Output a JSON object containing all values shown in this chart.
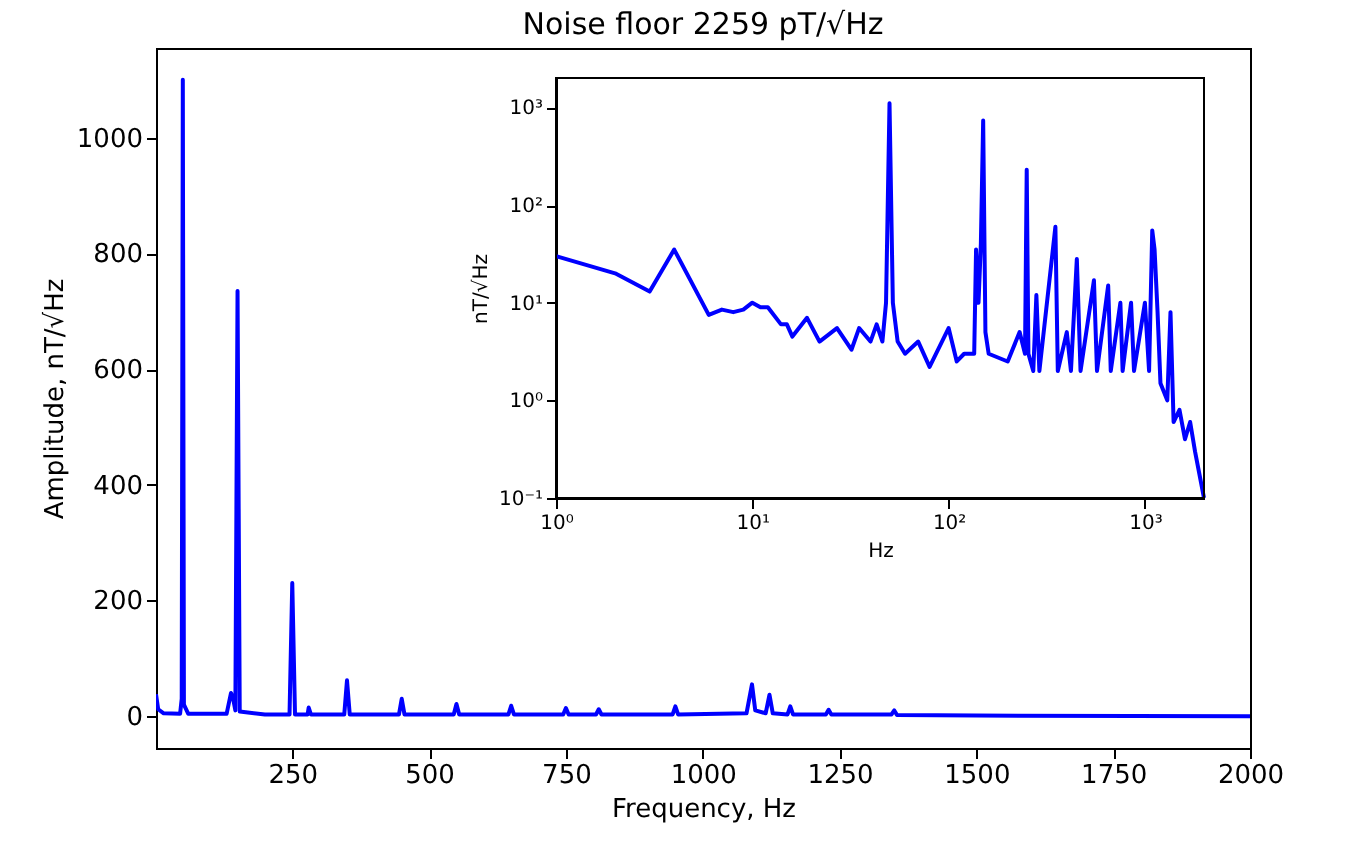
{
  "chart_data": [
    {
      "type": "line",
      "title": "Noise floor 2259 pT/√Hz",
      "xlabel": "Frequency, Hz",
      "ylabel": "Amplitude, nT/√Hz",
      "xlim": [
        1,
        2000
      ],
      "xticks": [
        250,
        500,
        750,
        1000,
        1250,
        1500,
        1750,
        2000
      ],
      "ylim": [
        -55,
        1155
      ],
      "yticks": [
        0,
        200,
        400,
        600,
        800,
        1000
      ],
      "grid": false,
      "line_style": "solid",
      "marker": "none",
      "x": [
        1,
        5,
        15,
        45,
        48,
        50,
        52,
        60,
        130,
        138,
        142,
        146,
        150,
        154,
        200,
        245,
        250,
        255,
        278,
        280,
        284,
        345,
        350,
        355,
        445,
        450,
        455,
        545,
        550,
        555,
        645,
        650,
        655,
        745,
        750,
        755,
        805,
        810,
        815,
        945,
        950,
        955,
        1080,
        1090,
        1096,
        1115,
        1122,
        1128,
        1155,
        1160,
        1165,
        1225,
        1230,
        1235,
        1345,
        1350,
        1355,
        1500,
        2000
      ],
      "series": [
        {
          "color": "#0000ff",
          "values": [
            38,
            12,
            5,
            4,
            30,
            1100,
            20,
            4,
            4,
            40,
            30,
            10,
            735,
            8,
            3,
            3,
            230,
            3,
            3,
            15,
            3,
            3,
            62,
            3,
            3,
            30,
            3,
            3,
            21,
            3,
            3,
            18,
            3,
            3,
            14,
            3,
            3,
            12,
            3,
            3,
            17,
            3,
            5,
            55,
            10,
            5,
            37,
            5,
            3,
            17,
            3,
            3,
            11,
            3,
            3,
            10,
            2,
            1,
            0
          ]
        }
      ]
    },
    {
      "type": "line",
      "xlabel": "Hz",
      "ylabel": "nT/√Hz",
      "log": "xy",
      "xlim": [
        1,
        2000
      ],
      "ylim": [
        0.1,
        2000
      ],
      "grid": false,
      "line_style": "solid",
      "marker": "none",
      "xticks": [
        {
          "value": 1,
          "label": "10⁰"
        },
        {
          "value": 10,
          "label": "10¹"
        },
        {
          "value": 100,
          "label": "10²"
        },
        {
          "value": 1000,
          "label": "10³"
        }
      ],
      "yticks": [
        {
          "value": 0.1,
          "label": "10⁻¹"
        },
        {
          "value": 1,
          "label": "10⁰"
        },
        {
          "value": 10,
          "label": "10¹"
        },
        {
          "value": 100,
          "label": "10²"
        },
        {
          "value": 1000,
          "label": "10³"
        }
      ],
      "x": [
        1,
        2,
        3,
        4,
        6,
        7,
        8,
        9,
        10,
        11,
        12,
        14,
        15,
        16,
        19,
        22,
        27,
        32,
        35,
        40,
        43,
        46,
        48,
        50,
        52,
        55,
        60,
        70,
        80,
        100,
        110,
        120,
        135,
        138,
        142,
        146,
        150,
        154,
        160,
        200,
        230,
        245,
        250,
        255,
        270,
        280,
        290,
        350,
        360,
        400,
        420,
        450,
        470,
        550,
        570,
        650,
        670,
        750,
        770,
        850,
        880,
        1000,
        1050,
        1090,
        1120,
        1160,
        1200,
        1300,
        1350,
        1400,
        1500,
        1600,
        1700,
        1800,
        2000
      ],
      "series": [
        {
          "color": "#0000ff",
          "values": [
            30,
            20,
            13,
            35,
            7.5,
            8.5,
            8,
            8.5,
            10,
            9,
            9,
            6,
            6,
            4.5,
            7,
            4,
            5.5,
            3.3,
            5.5,
            4,
            6,
            4,
            10,
            1100,
            10,
            4,
            3,
            4,
            2.2,
            5.5,
            2.5,
            3,
            3,
            35,
            10,
            40,
            735,
            5,
            3,
            2.5,
            5,
            3,
            230,
            3,
            2,
            12,
            2,
            60,
            2,
            5,
            2,
            28,
            2,
            17,
            2,
            15,
            2,
            10,
            2,
            10,
            2,
            10,
            2,
            55,
            35,
            8,
            1.5,
            1,
            8,
            0.6,
            0.8,
            0.4,
            0.6,
            0.3,
            0.1
          ]
        }
      ]
    }
  ]
}
